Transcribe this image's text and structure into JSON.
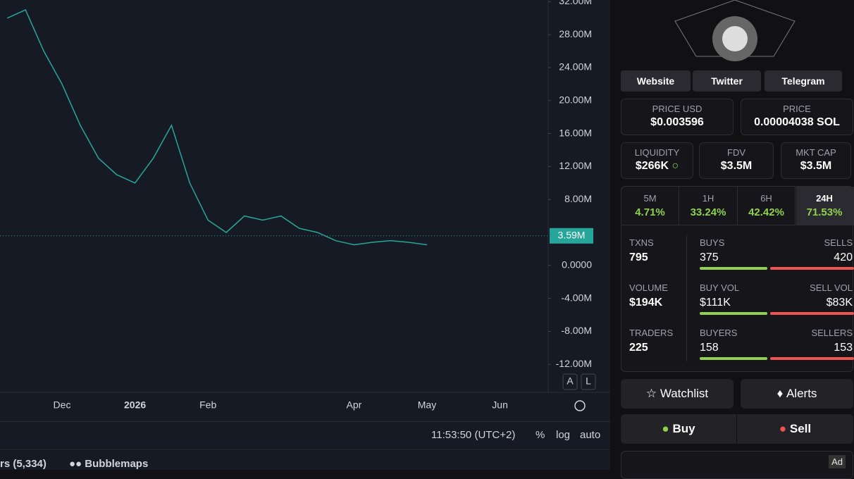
{
  "chart_data": {
    "type": "line",
    "categories": [
      null,
      null,
      null,
      "Dec",
      null,
      null,
      null,
      "2026",
      null,
      null,
      null,
      "Feb",
      null,
      null,
      null,
      null,
      null,
      null,
      null,
      "Apr",
      null,
      null,
      null,
      "May",
      null,
      null,
      null,
      "Jun",
      null,
      null
    ],
    "series": [
      {
        "color": "#26a69a",
        "values": [
          30,
          31,
          26,
          22,
          17,
          13,
          11,
          10,
          13,
          17,
          10,
          5.5,
          4,
          6,
          5.5,
          6,
          4.5,
          4,
          3,
          2.5,
          2.8,
          3,
          2.8,
          2.5,
          null,
          null,
          null,
          null,
          null,
          null
        ]
      }
    ],
    "ylim": [
      -15.4,
      32.2
    ],
    "yticks": [
      {
        "value": 32,
        "label": "32.00M"
      },
      {
        "value": 28,
        "label": "28.00M"
      },
      {
        "value": 24,
        "label": "24.00M"
      },
      {
        "value": 20,
        "label": "20.00M"
      },
      {
        "value": 16,
        "label": "16.00M"
      },
      {
        "value": 12,
        "label": "12.00M"
      },
      {
        "value": 8,
        "label": "8.00M"
      },
      {
        "value": 0,
        "label": "0.0000"
      },
      {
        "value": -4,
        "label": "-4.00M"
      },
      {
        "value": -8,
        "label": "-8.00M"
      },
      {
        "value": -12,
        "label": "-12.00M"
      }
    ],
    "price_marker": {
      "value": 3.59,
      "label": "3.59M"
    },
    "grid": false
  },
  "toolbar": {
    "scale_a": "A",
    "scale_l": "L",
    "time": "11:53:50 (UTC+2)",
    "percent": "%",
    "log": "log",
    "auto": "auto",
    "tab_holders": "rs (5,334)",
    "tab_bubblemaps": "Bubblemaps"
  },
  "panel": {
    "links": [
      "Website",
      "Twitter",
      "Telegram"
    ],
    "price_usd": {
      "label": "PRICE USD",
      "value": "$0.003596"
    },
    "price_sol": {
      "label": "PRICE",
      "value": "0.00004038 SOL"
    },
    "liquidity": {
      "label": "LIQUIDITY",
      "value": "$266K"
    },
    "fdv": {
      "label": "FDV",
      "value": "$3.5M"
    },
    "mkt_cap": {
      "label": "MKT CAP",
      "value": "$3.5M"
    },
    "timeframes": [
      {
        "label": "5M",
        "change": "4.71%"
      },
      {
        "label": "1H",
        "change": "33.24%"
      },
      {
        "label": "6H",
        "change": "42.42%"
      },
      {
        "label": "24H",
        "change": "71.53%"
      }
    ],
    "stats": [
      {
        "label": "TXNS",
        "value": "795",
        "left_label": "BUYS",
        "left_value": "375",
        "right_label": "SELLS",
        "right_value": "420"
      },
      {
        "label": "VOLUME",
        "value": "$194K",
        "left_label": "BUY VOL",
        "left_value": "$111K",
        "right_label": "SELL VOL",
        "right_value": "$83K"
      },
      {
        "label": "TRADERS",
        "value": "225",
        "left_label": "BUYERS",
        "left_value": "158",
        "right_label": "SELLERS",
        "right_value": "153"
      }
    ],
    "watchlist": "Watchlist",
    "alerts": "Alerts",
    "buy": "Buy",
    "sell": "Sell",
    "ad": "Ad"
  }
}
